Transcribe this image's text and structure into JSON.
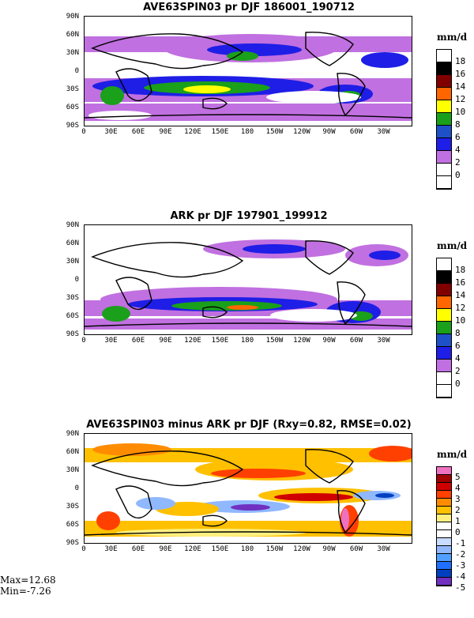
{
  "panels": [
    {
      "title": "AVE63SPIN03 pr DJF 186001_190712",
      "unit": "mm/d",
      "levels": [
        "18",
        "16",
        "14",
        "12",
        "10",
        "8",
        "6",
        "4",
        "2",
        "0"
      ],
      "colors": [
        "#ffffff",
        "#000000",
        "#800000",
        "#ff6600",
        "#ffff00",
        "#1aa01a",
        "#1e50c8",
        "#1e1ee6",
        "#c070e0",
        "#ffffff",
        "#ffffff"
      ]
    },
    {
      "title": "ARK pr DJF 197901_199912",
      "unit": "mm/d",
      "levels": [
        "18",
        "16",
        "14",
        "12",
        "10",
        "8",
        "6",
        "4",
        "2",
        "0"
      ],
      "colors": [
        "#ffffff",
        "#000000",
        "#800000",
        "#ff6600",
        "#ffff00",
        "#1aa01a",
        "#1e50c8",
        "#1e1ee6",
        "#c070e0",
        "#ffffff",
        "#ffffff"
      ]
    },
    {
      "title": "AVE63SPIN03 minus ARK pr DJF (Rxy=0.82, RMSE=0.02)",
      "unit": "mm/d",
      "levels": [
        "5",
        "4",
        "3",
        "2",
        "1",
        "0",
        "-1",
        "-2",
        "-3",
        "-4",
        "-5"
      ],
      "colors": [
        "#f070c0",
        "#a00000",
        "#d00000",
        "#ff4000",
        "#ff8c00",
        "#ffc000",
        "#fff080",
        "#ffffff",
        "#ffffff",
        "#c8dcff",
        "#90b8ff",
        "#50a0ff",
        "#2070ff",
        "#0040c0",
        "#7030c0"
      ]
    }
  ],
  "lat_labels": [
    "90N",
    "60N",
    "30N",
    "0",
    "30S",
    "60S",
    "90S"
  ],
  "lon_labels": [
    "0",
    "30E",
    "60E",
    "90E",
    "120E",
    "150E",
    "180",
    "150W",
    "120W",
    "90W",
    "60W",
    "30W"
  ],
  "stats": {
    "max": "Max=12.68",
    "min": "Min=-7.26"
  }
}
